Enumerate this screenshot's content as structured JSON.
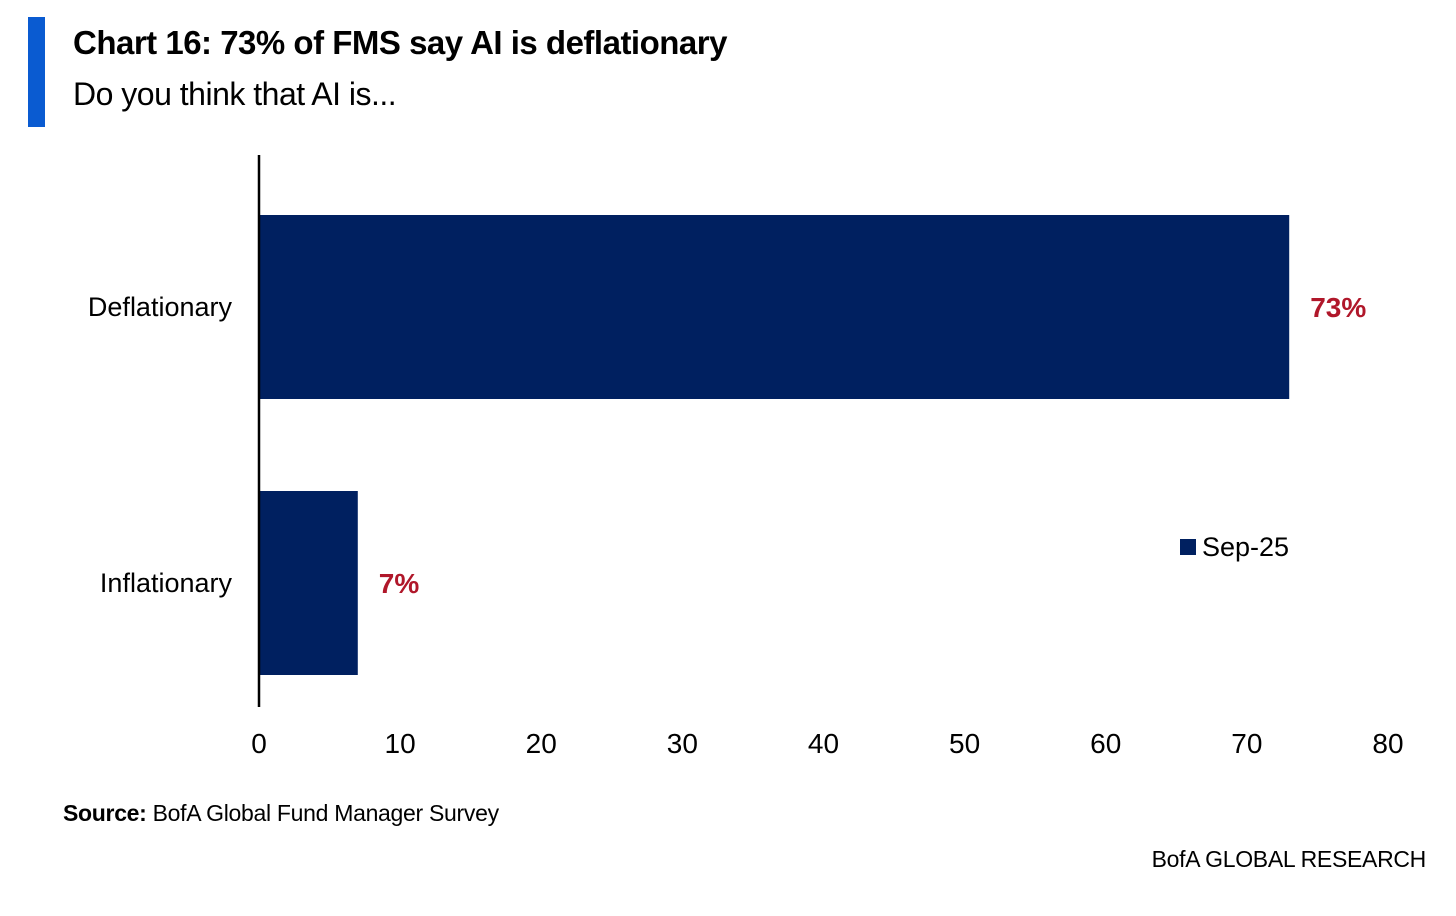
{
  "header": {
    "title": "Chart 16: 73% of FMS say AI is deflationary",
    "subtitle": "Do you think that AI is..."
  },
  "colors": {
    "accent": "#0a5bd1",
    "bar": "#002060",
    "data_label": "#b0172a",
    "text": "#000000"
  },
  "chart_data": {
    "type": "bar",
    "orientation": "horizontal",
    "title": "Chart 16: 73% of FMS say AI is deflationary",
    "subtitle": "Do you think that AI is...",
    "categories": [
      "Deflationary",
      "Inflationary"
    ],
    "series": [
      {
        "name": "Sep-25",
        "values": [
          73,
          7
        ]
      }
    ],
    "data_labels": [
      "73%",
      "7%"
    ],
    "xlim": [
      0,
      80
    ],
    "xticks": [
      0,
      10,
      20,
      30,
      40,
      50,
      60,
      70,
      80
    ],
    "xlabel": "",
    "ylabel": "",
    "grid": false,
    "legend": {
      "entries": [
        "Sep-25"
      ],
      "position": "right"
    }
  },
  "footer": {
    "source_label": "Source:",
    "source_text": "BofA Global Fund Manager Survey",
    "brand": "BofA GLOBAL RESEARCH"
  }
}
